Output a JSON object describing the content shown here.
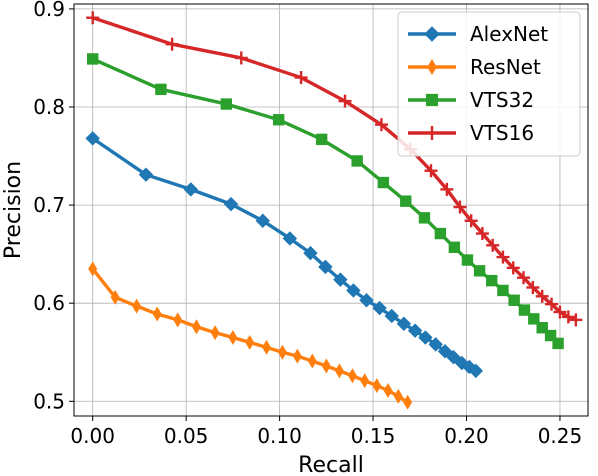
{
  "chart_data": {
    "type": "line",
    "title": "",
    "xlabel": "Recall",
    "ylabel": "Precision",
    "xlim": [
      -0.01,
      0.265
    ],
    "ylim": [
      0.485,
      0.905
    ],
    "xticks": [
      0.0,
      0.05,
      0.1,
      0.15,
      0.2,
      0.25
    ],
    "xtick_labels": [
      "0.00",
      "0.05",
      "0.10",
      "0.15",
      "0.20",
      "0.25"
    ],
    "yticks": [
      0.5,
      0.6,
      0.7,
      0.8,
      0.9
    ],
    "ytick_labels": [
      "0.5",
      "0.6",
      "0.7",
      "0.8",
      "0.9"
    ],
    "grid": true,
    "legend_position": "top-right",
    "series": [
      {
        "name": "AlexNet",
        "color": "#1f77b4",
        "marker": "diamond",
        "x": [
          0.0,
          0.0285,
          0.0525,
          0.074,
          0.091,
          0.1055,
          0.1165,
          0.1245,
          0.1325,
          0.1395,
          0.1465,
          0.1535,
          0.16,
          0.1665,
          0.1725,
          0.178,
          0.1835,
          0.1885,
          0.193,
          0.1975,
          0.2015,
          0.205
        ],
        "y": [
          0.768,
          0.731,
          0.716,
          0.701,
          0.684,
          0.666,
          0.651,
          0.637,
          0.624,
          0.613,
          0.603,
          0.595,
          0.587,
          0.579,
          0.572,
          0.565,
          0.558,
          0.551,
          0.545,
          0.539,
          0.535,
          0.531
        ]
      },
      {
        "name": "ResNet",
        "color": "#ff7f0e",
        "marker": "thin-diamond",
        "x": [
          0.0,
          0.012,
          0.0235,
          0.0345,
          0.0455,
          0.0555,
          0.0655,
          0.075,
          0.084,
          0.093,
          0.1015,
          0.1095,
          0.1175,
          0.125,
          0.132,
          0.139,
          0.1455,
          0.152,
          0.158,
          0.1635,
          0.1685
        ],
        "y": [
          0.635,
          0.606,
          0.597,
          0.589,
          0.583,
          0.576,
          0.57,
          0.565,
          0.56,
          0.555,
          0.55,
          0.546,
          0.541,
          0.536,
          0.531,
          0.526,
          0.521,
          0.516,
          0.511,
          0.505,
          0.499
        ]
      },
      {
        "name": "VTS32",
        "color": "#2ca02c",
        "marker": "square",
        "x": [
          0.0,
          0.0365,
          0.0715,
          0.0995,
          0.1225,
          0.1415,
          0.1555,
          0.1675,
          0.1775,
          0.186,
          0.1935,
          0.2005,
          0.207,
          0.2135,
          0.2195,
          0.2255,
          0.231,
          0.236,
          0.2405,
          0.245,
          0.249
        ],
        "y": [
          0.849,
          0.818,
          0.803,
          0.787,
          0.767,
          0.745,
          0.723,
          0.704,
          0.687,
          0.671,
          0.657,
          0.644,
          0.633,
          0.623,
          0.613,
          0.603,
          0.593,
          0.584,
          0.575,
          0.567,
          0.559
        ]
      },
      {
        "name": "VTS16",
        "color": "#d62728",
        "marker": "plus",
        "x": [
          0.0,
          0.0425,
          0.0795,
          0.1115,
          0.135,
          0.1545,
          0.17,
          0.181,
          0.1895,
          0.1965,
          0.2025,
          0.2085,
          0.214,
          0.2195,
          0.225,
          0.2305,
          0.2355,
          0.2405,
          0.2455,
          0.25,
          0.2545,
          0.2585
        ],
        "y": [
          0.891,
          0.864,
          0.85,
          0.83,
          0.806,
          0.782,
          0.757,
          0.735,
          0.716,
          0.698,
          0.684,
          0.671,
          0.659,
          0.647,
          0.636,
          0.626,
          0.616,
          0.607,
          0.599,
          0.591,
          0.586,
          0.583
        ]
      }
    ]
  }
}
